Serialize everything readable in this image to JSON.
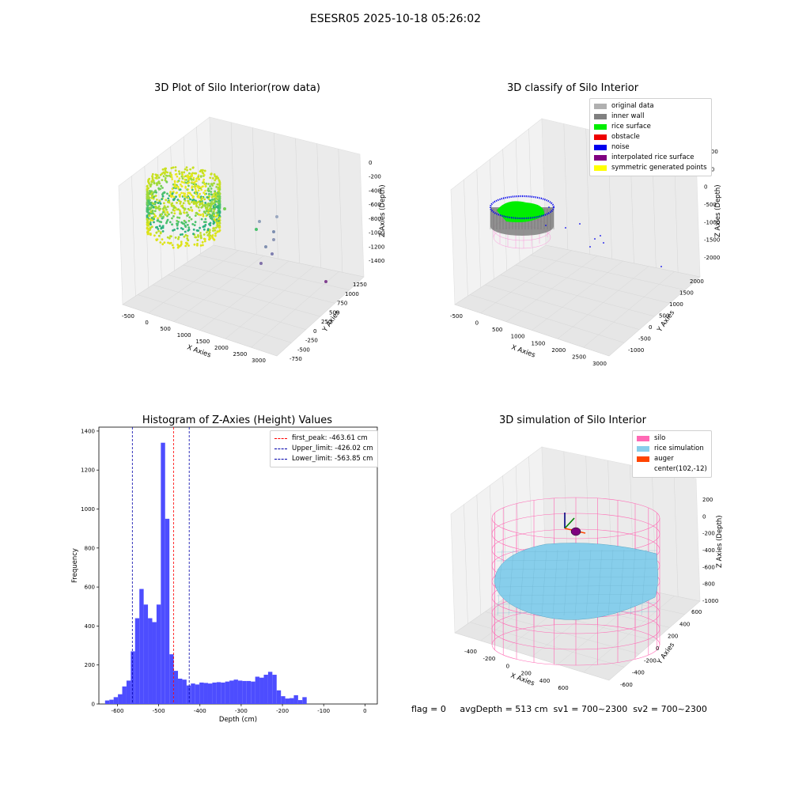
{
  "suptitle": "ESESR05 2025-10-18 05:26:02",
  "panel1": {
    "title": "3D Plot of Silo Interior(row data)",
    "xlabel": "X Axies",
    "ylabel": "Y Axies",
    "zlabel": "Z Axies (Depth)",
    "xticks": [
      "-500",
      "0",
      "500",
      "1000",
      "1500",
      "2000",
      "2500",
      "3000"
    ],
    "yticks": [
      "-750",
      "-500",
      "-250",
      "0",
      "250",
      "500",
      "750",
      "1000",
      "1250"
    ],
    "zticks": [
      "0",
      "-200",
      "-400",
      "-600",
      "-800",
      "-1000",
      "-1200",
      "-1400"
    ]
  },
  "panel2": {
    "title": "3D classify of Silo Interior",
    "xlabel": "X Axies",
    "ylabel": "Y Axies",
    "zlabel": "Z Axies (Depth)",
    "xticks": [
      "-500",
      "0",
      "500",
      "1000",
      "1500",
      "2000",
      "2500",
      "3000"
    ],
    "yticks": [
      "-1000",
      "-500",
      "0",
      "500",
      "1000",
      "1500",
      "2000"
    ],
    "zticks": [
      "1000",
      "500",
      "0",
      "-500",
      "-1000",
      "-1500",
      "-2000"
    ],
    "legend": [
      {
        "label": "original data",
        "color": "#b0b0b0"
      },
      {
        "label": "inner wall",
        "color": "#808080"
      },
      {
        "label": "rice surface",
        "color": "#00ee00"
      },
      {
        "label": "obstacle",
        "color": "#ee0000"
      },
      {
        "label": "noise",
        "color": "#0000ee"
      },
      {
        "label": "interpolated rice surface",
        "color": "#800080"
      },
      {
        "label": "symmetric generated points",
        "color": "#ffff00"
      }
    ]
  },
  "panel4": {
    "title": "3D simulation of Silo Interior",
    "xlabel": "X Axies",
    "ylabel": "Y Axies",
    "zlabel": "Z Axies (Depth)",
    "xticks": [
      "-400",
      "-200",
      "0",
      "200",
      "400",
      "600"
    ],
    "yticks": [
      "-600",
      "-400",
      "-200",
      "0",
      "200",
      "400",
      "600"
    ],
    "zticks": [
      "200",
      "0",
      "-200",
      "-400",
      "-600",
      "-800",
      "-1000"
    ],
    "legend": [
      {
        "label": "silo",
        "color": "#ff69b4"
      },
      {
        "label": "rice simulation",
        "color": "#87ceeb"
      },
      {
        "label": "auger",
        "color": "#ff4500"
      },
      {
        "label": "center(102,-12)",
        "color": ""
      }
    ]
  },
  "footer": {
    "text": "flag = 0     avgDepth = 513 cm  sv1 = 700~2300  sv2 = 700~2300"
  },
  "chart_data": [
    {
      "type": "scatter",
      "title": "3D Plot of Silo Interior(row data)",
      "xlabel": "X Axies",
      "ylabel": "Y Axies",
      "zlabel": "Z Axies (Depth)",
      "xlim": [
        -600,
        3100
      ],
      "ylim": [
        -800,
        1350
      ],
      "zlim": [
        -1450,
        50
      ]
    },
    {
      "type": "scatter",
      "title": "3D classify of Silo Interior",
      "xlabel": "X Axies",
      "ylabel": "Y Axies",
      "zlabel": "Z Axies (Depth)",
      "series": [
        {
          "name": "original data"
        },
        {
          "name": "inner wall"
        },
        {
          "name": "rice surface"
        },
        {
          "name": "obstacle"
        },
        {
          "name": "noise"
        },
        {
          "name": "interpolated rice surface"
        },
        {
          "name": "symmetric generated points"
        }
      ]
    },
    {
      "type": "bar",
      "title": "Histogram of Z-Axies (Height) Values",
      "xlabel": "Depth (cm)",
      "ylabel": "Frequency",
      "xlim": [
        -645,
        30
      ],
      "ylim": [
        0,
        1420
      ],
      "xticks": [
        -600,
        -500,
        -400,
        -300,
        -200,
        -100,
        0
      ],
      "yticks": [
        0,
        200,
        400,
        600,
        800,
        1000,
        1200,
        1400
      ],
      "bin_start": -630,
      "bin_width": 10.4,
      "values": [
        18,
        22,
        35,
        50,
        90,
        120,
        270,
        440,
        590,
        510,
        440,
        420,
        510,
        1340,
        950,
        255,
        170,
        130,
        125,
        95,
        105,
        100,
        110,
        108,
        105,
        110,
        112,
        110,
        115,
        120,
        125,
        120,
        118,
        118,
        115,
        140,
        135,
        150,
        165,
        150,
        70,
        40,
        28,
        30,
        45,
        20,
        35
      ],
      "vlines": [
        {
          "name": "first_peak: -463.61 cm",
          "x": -463.61,
          "color": "#ff0000"
        },
        {
          "name": "Upper_limit: -426.02 cm",
          "x": -426.02,
          "color": "#0000aa"
        },
        {
          "name": "Lower_limit: -563.85 cm",
          "x": -563.85,
          "color": "#0000aa"
        }
      ],
      "legend_position": "top-right"
    },
    {
      "type": "scatter",
      "title": "3D simulation of Silo Interior",
      "xlabel": "X Axies",
      "ylabel": "Y Axies",
      "zlabel": "Z Axies (Depth)",
      "series": [
        {
          "name": "silo"
        },
        {
          "name": "rice simulation"
        },
        {
          "name": "auger"
        },
        {
          "name": "center(102,-12)"
        }
      ]
    }
  ]
}
